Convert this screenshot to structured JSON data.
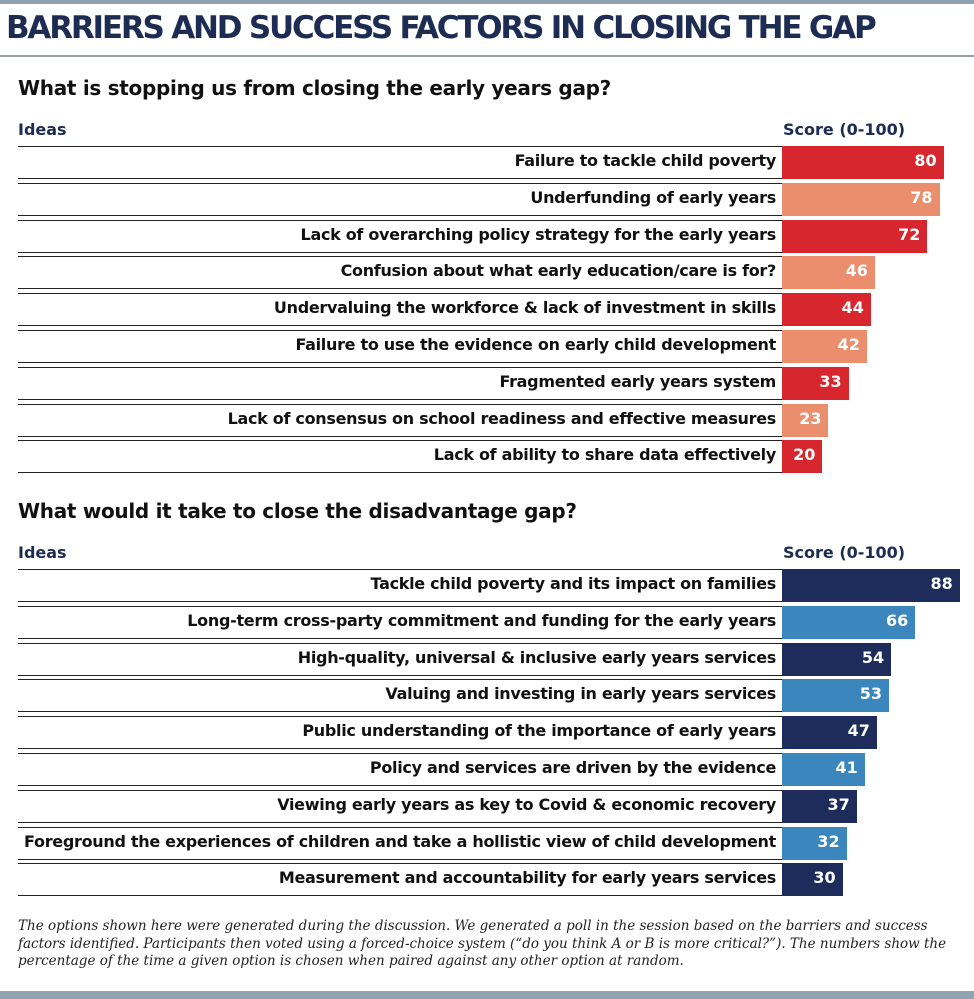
{
  "title": "BARRIERS AND SUCCESS FACTORS IN CLOSING THE GAP",
  "colors": {
    "barrier_dark": "#d7262d",
    "barrier_light": "#eb8e6e",
    "success_dark": "#1d2c5a",
    "success_light": "#3a86bd",
    "heading_blue": "#1d2c52"
  },
  "chart_data": [
    {
      "type": "bar",
      "orientation": "horizontal",
      "title": "What is stopping us from closing the early years gap?",
      "category_header": "Ideas",
      "value_header": "Score (0-100)",
      "categories": [
        "Failure to tackle child poverty",
        "Underfunding of early years",
        "Lack of overarching policy strategy for the early years",
        "Confusion about what early education/care is for?",
        "Undervaluing the workforce & lack of investment in skills",
        "Failure to use the evidence on early child development",
        "Fragmented early years system",
        "Lack of consensus on school readiness and effective measures",
        "Lack of ability to share data effectively"
      ],
      "values": [
        80,
        78,
        72,
        46,
        44,
        42,
        33,
        23,
        20
      ],
      "xlim": [
        0,
        100
      ],
      "bar_colors": [
        "#d7262d",
        "#eb8e6e",
        "#d7262d",
        "#eb8e6e",
        "#d7262d",
        "#eb8e6e",
        "#d7262d",
        "#eb8e6e",
        "#d7262d"
      ]
    },
    {
      "type": "bar",
      "orientation": "horizontal",
      "title": "What would it take to close the disadvantage gap?",
      "category_header": "Ideas",
      "value_header": "Score (0-100)",
      "categories": [
        "Tackle child poverty and its impact on families",
        "Long-term cross-party commitment and funding for the early years",
        "High-quality, universal & inclusive early years services",
        "Valuing and investing in early years services",
        "Public understanding of the importance of early years",
        "Policy and services are driven by the evidence",
        "Viewing early years as key to Covid & economic recovery",
        "Foreground the experiences of children and take a hollistic view of child development",
        "Measurement and accountability for early years services"
      ],
      "values": [
        88,
        66,
        54,
        53,
        47,
        41,
        37,
        32,
        30
      ],
      "xlim": [
        0,
        100
      ],
      "bar_colors": [
        "#1d2c5a",
        "#3a86bd",
        "#1d2c5a",
        "#3a86bd",
        "#1d2c5a",
        "#3a86bd",
        "#1d2c5a",
        "#3a86bd",
        "#1d2c5a"
      ]
    }
  ],
  "footnote": "The options shown here were generated during the discussion. We generated a poll in the session based on the barriers and success factors identified. Participants then voted using a forced-choice system (“do you think A or B is more critical?”). The numbers show the percentage of the time a given option is chosen when paired against any other option at random."
}
